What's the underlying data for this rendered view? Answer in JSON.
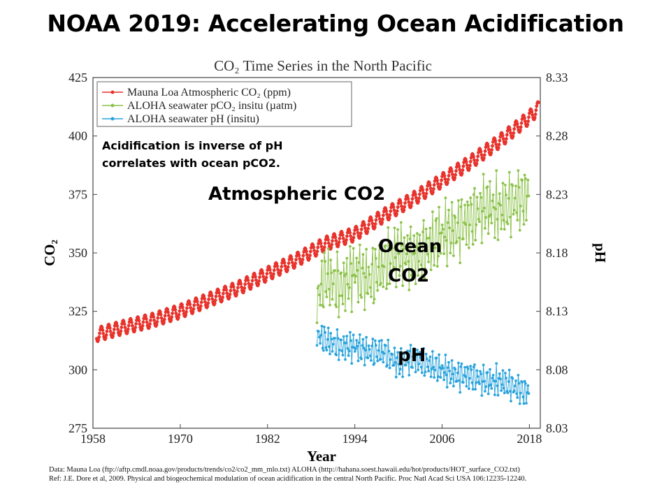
{
  "slide": {
    "title": "NOAA 2019: Accelerating Ocean Acidification",
    "note_line1": "Acidification is inverse of pH",
    "note_line2": "correlates with ocean pCO2.",
    "label_atmospheric": "Atmospheric CO2",
    "label_ocean_1": "Ocean",
    "label_ocean_2": "CO2",
    "label_ph": "pH",
    "source_line1": "Data: Mauna Loa (ftp://aftp.cmdl.noaa.gov/products/trends/co2/co2_mm_mlo.txt)  ALOHA (http://hahana.soest.hawaii.edu/hot/products/HOT_surface_CO2.txt)",
    "source_line2": "Ref: J.E. Dore et al, 2009. Physical and biogeochemical modulation of ocean acidification in the central North Pacific. Proc Natl Acad Sci USA 106:12235-12240."
  },
  "chart_data": {
    "type": "line",
    "title": "CO₂ Time Series in the North Pacific",
    "xlabel": "Year",
    "ylabel": "CO₂",
    "y2label": "pH",
    "xlim": [
      1958,
      2019.5
    ],
    "ylim": [
      275,
      425
    ],
    "y2lim": [
      8.03,
      8.33
    ],
    "xticks": [
      1958,
      1970,
      1982,
      1994,
      2006,
      2018
    ],
    "yticks": [
      275,
      300,
      325,
      350,
      375,
      400,
      425
    ],
    "y2ticks": [
      "8.03",
      "8.08",
      "8.13",
      "8.18",
      "8.23",
      "8.28",
      "8.33"
    ],
    "legend_position": "top-left",
    "grid": false,
    "series": [
      {
        "name": "Mauna Loa Atmospheric CO₂ (ppm)",
        "color": "#e8322b",
        "axis": "left",
        "x": [
          1958.5,
          1962,
          1966,
          1970,
          1974,
          1978,
          1982,
          1986,
          1990,
          1994,
          1998,
          2002,
          2006,
          2010,
          2014,
          2018,
          2019.3
        ],
        "y": [
          315,
          318,
          321,
          325,
          330,
          335,
          341,
          347,
          354,
          358,
          366,
          373,
          381,
          389,
          398,
          408,
          412
        ],
        "seasonal_amplitude": 3
      },
      {
        "name": "ALOHA seawater pCO₂ insitu (µatm)",
        "color": "#8cc24a",
        "axis": "left",
        "x": [
          1988.8,
          1990,
          1992,
          1994,
          1996,
          1998,
          2000,
          2002,
          2004,
          2006,
          2008,
          2010,
          2012,
          2014,
          2016,
          2018
        ],
        "y": [
          330,
          340,
          335,
          342,
          338,
          345,
          350,
          348,
          352,
          358,
          360,
          365,
          370,
          368,
          372,
          375
        ],
        "seasonal_amplitude": 13
      },
      {
        "name": "ALOHA seawater pH (insitu)",
        "color": "#2aa3dc",
        "axis": "right",
        "x": [
          1988.8,
          1990,
          1992,
          1994,
          1996,
          1998,
          2000,
          2002,
          2004,
          2006,
          2008,
          2010,
          2012,
          2014,
          2016,
          2018
        ],
        "y": [
          8.11,
          8.105,
          8.1,
          8.1,
          8.095,
          8.095,
          8.085,
          8.09,
          8.085,
          8.08,
          8.075,
          8.075,
          8.07,
          8.07,
          8.065,
          8.06
        ],
        "seasonal_amplitude": 0.012
      }
    ]
  }
}
